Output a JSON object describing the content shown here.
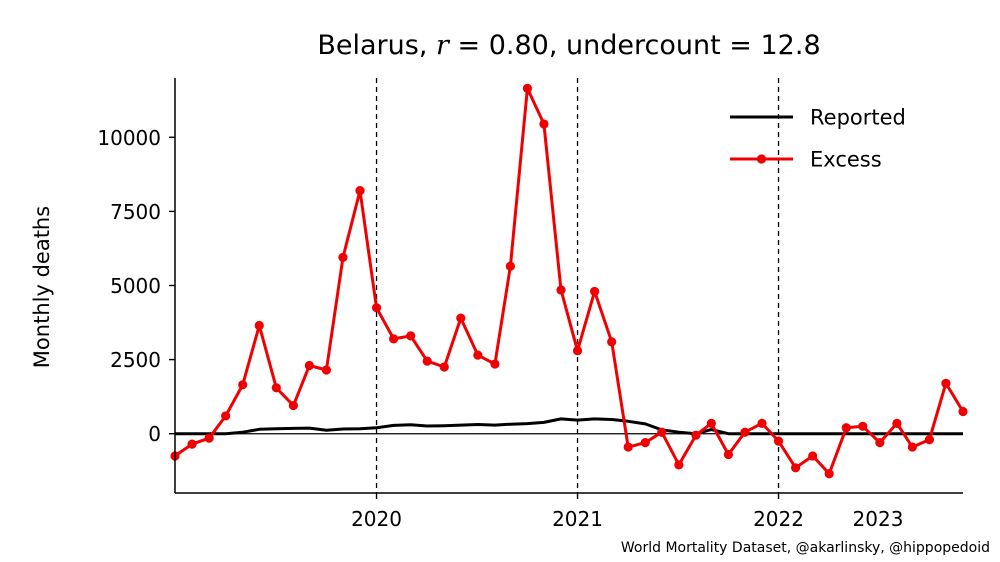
{
  "chart_data": {
    "type": "line",
    "title": {
      "country": "Belarus",
      "r_symbol": "r",
      "r_value": "0.80",
      "undercount_label": "undercount",
      "undercount_value": "12.8"
    },
    "ylabel": "Monthly deaths",
    "xlabel": "",
    "ylim": [
      -2000,
      12000
    ],
    "xlim": [
      "2019-07-01",
      "2023-06-01"
    ],
    "y_ticks": [
      0,
      2500,
      5000,
      7500,
      10000
    ],
    "x_ticks": [
      {
        "label": "2020",
        "x": "2020-07-01"
      },
      {
        "label": "2021",
        "x": "2021-07-01"
      },
      {
        "label": "2022",
        "x": "2022-07-01"
      },
      {
        "label": "2023",
        "x": "2023-07-01"
      }
    ],
    "vlines": [
      "2020-07-01",
      "2021-07-01",
      "2022-07-01"
    ],
    "hline": 0,
    "grid": false,
    "legend_placement": "top-right",
    "dates": [
      "2019-07",
      "2019-08",
      "2019-09",
      "2019-10",
      "2019-11",
      "2019-12",
      "2020-01",
      "2020-02",
      "2020-03",
      "2020-04",
      "2020-05",
      "2020-06",
      "2020-07",
      "2020-08",
      "2020-09",
      "2020-10",
      "2020-11",
      "2020-12",
      "2021-01",
      "2021-02",
      "2021-03",
      "2021-04",
      "2021-05",
      "2021-06",
      "2021-07",
      "2021-08",
      "2021-09",
      "2021-10",
      "2021-11",
      "2021-12",
      "2022-01",
      "2022-02",
      "2022-03",
      "2022-04",
      "2022-05",
      "2022-06",
      "2022-07",
      "2022-08",
      "2022-09",
      "2022-10",
      "2022-11",
      "2022-12",
      "2023-01",
      "2023-02",
      "2023-03",
      "2023-04",
      "2023-05",
      "2023-06"
    ],
    "series": [
      {
        "name": "Reported",
        "color": "#000000",
        "markers": false,
        "values": [
          0,
          0,
          0,
          0,
          50,
          150,
          170,
          180,
          190,
          120,
          160,
          170,
          200,
          280,
          300,
          260,
          270,
          290,
          310,
          290,
          320,
          340,
          380,
          500,
          460,
          500,
          480,
          420,
          330,
          130,
          50,
          0,
          140,
          0,
          0,
          0,
          0,
          0,
          0,
          0,
          0,
          0,
          0,
          0,
          0,
          0,
          0,
          0
        ]
      },
      {
        "name": "Excess",
        "color": "#f00000",
        "markers": true,
        "values": [
          -750,
          -350,
          -150,
          600,
          1650,
          3650,
          1550,
          950,
          2300,
          2150,
          5950,
          8200,
          4250,
          3200,
          3300,
          2450,
          2250,
          3900,
          2650,
          2350,
          5650,
          11650,
          10450,
          4850,
          2800,
          4800,
          3100,
          -450,
          -300,
          50,
          -1050,
          -50,
          350,
          -700,
          50,
          350,
          -250,
          -1150,
          -750,
          -1350,
          200,
          250,
          -300,
          350,
          -450,
          -200,
          1700,
          750
        ]
      }
    ]
  },
  "credit": "World Mortality Dataset, @akarlinsky, @hippopedoid"
}
